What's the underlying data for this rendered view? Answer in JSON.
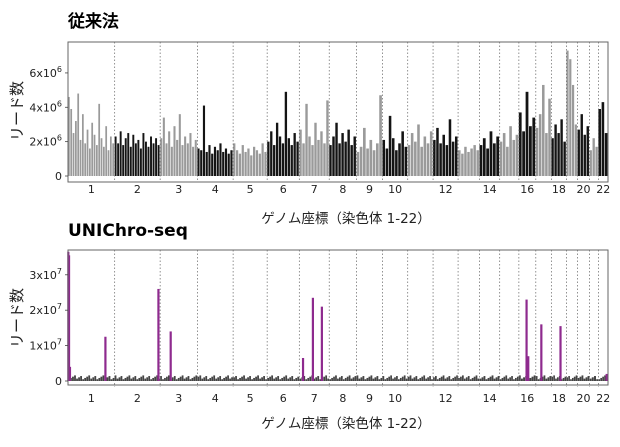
{
  "chart_data": [
    {
      "type": "bar",
      "title": "従来法",
      "ylabel": "リード数",
      "xlabel": "ゲノム座標（染色体 1-22）",
      "ylim": [
        0,
        7800000
      ],
      "yticks": [
        {
          "value": 0,
          "label": "0"
        },
        {
          "value": 2000000,
          "label": "2x10^6"
        },
        {
          "value": 4000000,
          "label": "4x10^6"
        },
        {
          "value": 6000000,
          "label": "6x10^6"
        }
      ],
      "chromosome_labels": [
        "1",
        "2",
        "3",
        "4",
        "5",
        "6",
        "7",
        "8",
        "9",
        "10",
        "12",
        "14",
        "16",
        "18",
        "20",
        "22"
      ],
      "chromosome_label_positions": [
        1,
        2,
        3,
        4,
        5,
        6,
        7,
        8,
        9,
        10,
        12,
        14,
        16,
        18,
        20,
        22
      ],
      "chromosome_sizes": [
        248,
        242,
        198,
        190,
        181,
        171,
        159,
        145,
        138,
        134,
        135,
        133,
        114,
        107,
        102,
        90,
        83,
        80,
        59,
        64,
        47,
        51
      ],
      "bar_colors": [
        "#9a9a9a",
        "#141414"
      ],
      "grid": "vertical dotted chromosome boundaries",
      "chromosome_values": [
        [
          4600000,
          3900000,
          2500000,
          3200000,
          4800000,
          2100000,
          3600000,
          1900000,
          2700000,
          1600000,
          3100000,
          2400000,
          1800000,
          4200000,
          2200000,
          1700000,
          2900000,
          1500000,
          2300000,
          1900000
        ],
        [
          2300000,
          1900000,
          2600000,
          1800000,
          2200000,
          2500000,
          1700000,
          2400000,
          1900000,
          2100000,
          1600000,
          2500000,
          2000000,
          1700000,
          2300000,
          1900000,
          2200000,
          1800000
        ],
        [
          2200000,
          3400000,
          1900000,
          2600000,
          1700000,
          2900000,
          2100000,
          3600000,
          1800000,
          2300000,
          1900000,
          2500000,
          1700000,
          2100000
        ],
        [
          1600000,
          1500000,
          4100000,
          1400000,
          1800000,
          1300000,
          1700000,
          1500000,
          1900000,
          1400000,
          1600000,
          1300000,
          1500000
        ],
        [
          1900000,
          1500000,
          1300000,
          1800000,
          1400000,
          1600000,
          1200000,
          1700000,
          1500000,
          1300000,
          1900000,
          1400000
        ],
        [
          2000000,
          2600000,
          1800000,
          3100000,
          2300000,
          1900000,
          4900000,
          2200000,
          1800000,
          2500000,
          2000000
        ],
        [
          2700000,
          1900000,
          4200000,
          2300000,
          1800000,
          3100000,
          2100000,
          2600000,
          1900000,
          4400000
        ],
        [
          1800000,
          2300000,
          3100000,
          1900000,
          2500000,
          2000000,
          2700000,
          1800000,
          2300000
        ],
        [
          1400000,
          1700000,
          2800000,
          1600000,
          2100000,
          1500000,
          1900000,
          4700000
        ],
        [
          2100000,
          1600000,
          3500000,
          2200000,
          1500000,
          1900000,
          2600000,
          1700000
        ],
        [
          1800000,
          2500000,
          2000000,
          3000000,
          1700000,
          2300000,
          1900000,
          2600000
        ],
        [
          2100000,
          2800000,
          1900000,
          2400000,
          1800000,
          3300000,
          2000000,
          2300000
        ],
        [
          1500000,
          1300000,
          1700000,
          1400000,
          1600000,
          1800000,
          1500000
        ],
        [
          1800000,
          2200000,
          1600000,
          2600000,
          1900000,
          2300000
        ],
        [
          2000000,
          2500000,
          1700000,
          2900000,
          2100000,
          2400000
        ],
        [
          3700000,
          2600000,
          4900000,
          2900000,
          3400000
        ],
        [
          2800000,
          3600000,
          5300000,
          2500000,
          4500000
        ],
        [
          2200000,
          3000000,
          2500000,
          3300000,
          2000000
        ],
        [
          7300000,
          6800000,
          5300000,
          3000000
        ],
        [
          2700000,
          3600000,
          2400000,
          2900000
        ],
        [
          1500000,
          2200000,
          1700000
        ],
        [
          3900000,
          4300000,
          2500000
        ]
      ]
    },
    {
      "type": "bar",
      "title": "UNIChro-seq",
      "ylabel": "リード数",
      "xlabel": "ゲノム座標（染色体 1-22）",
      "ylim": [
        0,
        37000000
      ],
      "yticks": [
        {
          "value": 0,
          "label": "0"
        },
        {
          "value": 10000000,
          "label": "1x10^7"
        },
        {
          "value": 20000000,
          "label": "2x10^7"
        },
        {
          "value": 30000000,
          "label": "3x10^7"
        }
      ],
      "chromosome_labels": [
        "1",
        "2",
        "3",
        "4",
        "5",
        "6",
        "7",
        "8",
        "9",
        "10",
        "12",
        "14",
        "16",
        "18",
        "20",
        "22"
      ],
      "chromosome_label_positions": [
        1,
        2,
        3,
        4,
        5,
        6,
        7,
        8,
        9,
        10,
        12,
        14,
        16,
        18,
        20,
        22
      ],
      "chromosome_sizes": [
        248,
        242,
        198,
        190,
        181,
        171,
        159,
        145,
        138,
        134,
        135,
        133,
        114,
        107,
        102,
        90,
        83,
        80,
        59,
        64,
        47,
        51
      ],
      "baseline_color": "#444444",
      "peak_color": "#8e2a8e",
      "grid": "vertical dotted chromosome boundaries",
      "peaks": [
        {
          "chromosome": 1,
          "position": 0.005,
          "value": 36500000
        },
        {
          "chromosome": 1,
          "position": 0.02,
          "value": 35500000
        },
        {
          "chromosome": 1,
          "position": 0.04,
          "value": 4000000
        },
        {
          "chromosome": 1,
          "position": 0.8,
          "value": 12500000
        },
        {
          "chromosome": 2,
          "position": 0.96,
          "value": 26000000
        },
        {
          "chromosome": 3,
          "position": 0.28,
          "value": 14000000
        },
        {
          "chromosome": 7,
          "position": 0.12,
          "value": 6500000
        },
        {
          "chromosome": 7,
          "position": 0.45,
          "value": 23500000
        },
        {
          "chromosome": 7,
          "position": 0.75,
          "value": 21000000
        },
        {
          "chromosome": 16,
          "position": 0.45,
          "value": 23000000
        },
        {
          "chromosome": 16,
          "position": 0.55,
          "value": 7000000
        },
        {
          "chromosome": 17,
          "position": 0.35,
          "value": 16000000
        },
        {
          "chromosome": 18,
          "position": 0.6,
          "value": 15500000
        },
        {
          "chromosome": 22,
          "position": 0.85,
          "value": 2000000
        }
      ]
    }
  ]
}
